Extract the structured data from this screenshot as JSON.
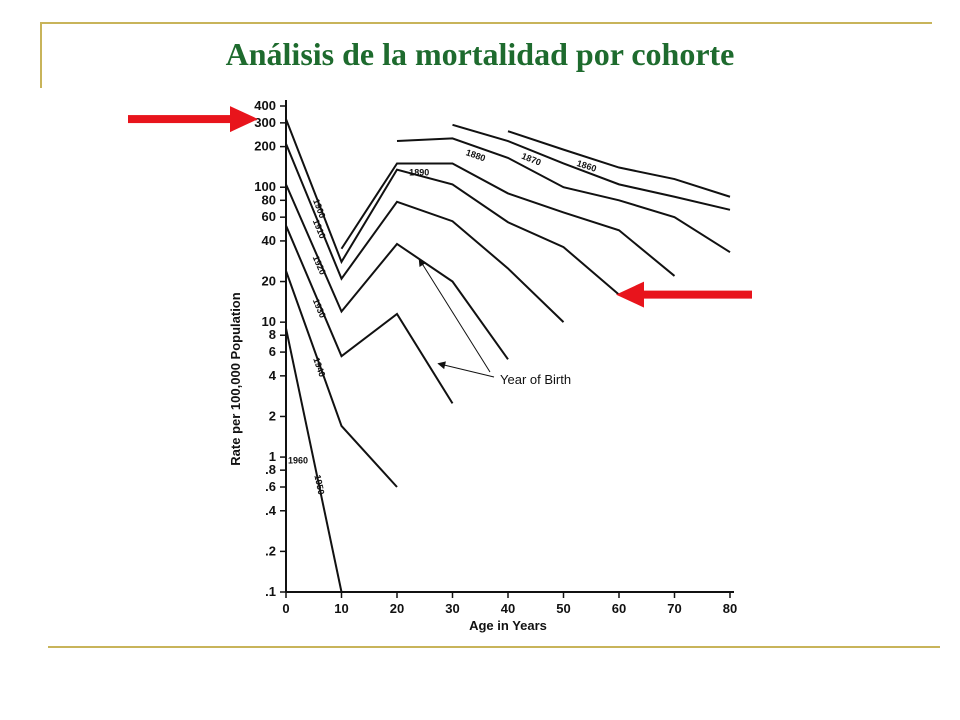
{
  "slide": {
    "title": "Análisis de la mortalidad por cohorte",
    "colors": {
      "title": "#1e6b2e",
      "frame": "#c8b45a",
      "arrow": "#e8141c"
    }
  },
  "chart_data": {
    "type": "line",
    "xlabel": "Age in Years",
    "ylabel": "Rate per 100,000 Population",
    "xlim": [
      0,
      80
    ],
    "ylim": [
      0.1,
      400
    ],
    "y_scale": "log",
    "x_ticks": [
      0,
      10,
      20,
      30,
      40,
      50,
      60,
      70,
      80
    ],
    "x_tick_labels": [
      "0",
      "10",
      "20",
      "30",
      "40",
      "50",
      "60",
      "70",
      "80"
    ],
    "y_ticks": [
      400,
      300,
      200,
      100,
      80,
      60,
      40,
      20,
      10,
      8,
      6,
      4,
      2,
      1,
      0.8,
      0.6,
      0.4,
      0.2,
      0.1
    ],
    "y_tick_labels": [
      "400",
      "300",
      "200",
      "100",
      "80",
      "60",
      "40",
      "20",
      "10",
      "8",
      "6",
      "4",
      "2",
      "1",
      ".8",
      ".6",
      ".4",
      ".2",
      ".1"
    ],
    "annotation": "Year of Birth",
    "series": [
      {
        "name": "1860",
        "x": [
          40,
          50,
          60,
          70,
          80
        ],
        "y": [
          260,
          190,
          140,
          115,
          85
        ]
      },
      {
        "name": "1870",
        "x": [
          30,
          40,
          50,
          60,
          70,
          80
        ],
        "y": [
          290,
          220,
          150,
          105,
          85,
          68
        ]
      },
      {
        "name": "1880",
        "x": [
          20,
          30,
          40,
          50,
          60,
          70,
          80
        ],
        "y": [
          220,
          230,
          165,
          100,
          80,
          60,
          33
        ]
      },
      {
        "name": "1890",
        "x": [
          10,
          20,
          30,
          40,
          50,
          60,
          70
        ],
        "y": [
          35,
          150,
          150,
          90,
          65,
          48,
          22
        ]
      },
      {
        "name": "1900",
        "x": [
          0,
          10,
          20,
          30,
          40,
          50,
          60
        ],
        "y": [
          320,
          28,
          135,
          105,
          55,
          36,
          16
        ]
      },
      {
        "name": "1910",
        "x": [
          0,
          10,
          20,
          30,
          40,
          50
        ],
        "y": [
          210,
          21,
          78,
          56,
          25,
          10
        ]
      },
      {
        "name": "1920",
        "x": [
          0,
          10,
          20,
          30,
          40
        ],
        "y": [
          105,
          12,
          38,
          20,
          5.3
        ]
      },
      {
        "name": "1930",
        "x": [
          0,
          10,
          20,
          30
        ],
        "y": [
          52,
          5.6,
          11.5,
          2.5
        ]
      },
      {
        "name": "1940",
        "x": [
          0,
          10,
          20
        ],
        "y": [
          24,
          1.7,
          0.6
        ]
      },
      {
        "name": "1950",
        "x": [
          0,
          10
        ],
        "y": [
          9,
          0.1
        ]
      },
      {
        "name": "1960",
        "x": [
          0
        ],
        "y": [
          1.1
        ]
      }
    ]
  }
}
